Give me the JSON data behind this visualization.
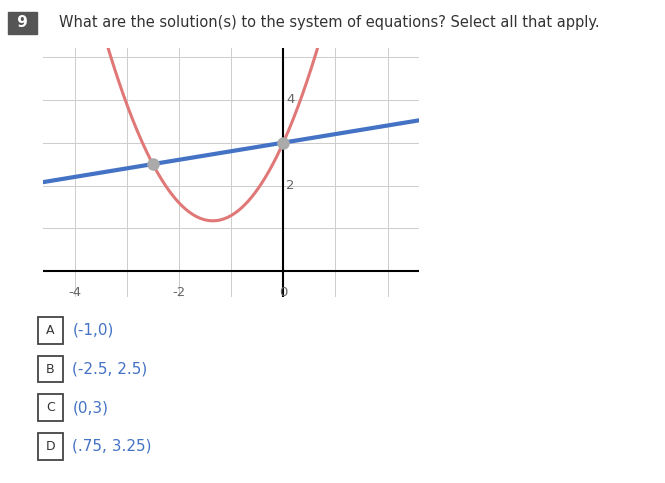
{
  "title": "What are the solution(s) to the system of equations? Select all that apply.",
  "question_number": "9",
  "parabola_color": "#e07878",
  "line_color": "#4472c4",
  "dot_color": "#aaaaaa",
  "intersection_points": [
    [
      -2.5,
      2.5
    ],
    [
      0.0,
      3.0
    ]
  ],
  "xlim": [
    -4.6,
    2.6
  ],
  "ylim": [
    -0.6,
    5.2
  ],
  "x_ticks": [
    -4,
    -2,
    0
  ],
  "y_ticks": [
    2,
    4
  ],
  "parabola_a": 1.0,
  "parabola_b": 2.7,
  "parabola_c": 3.0,
  "line_slope": 0.2,
  "line_intercept": 3.0,
  "choices": [
    {
      "label": "A",
      "text": "(-1,0)"
    },
    {
      "label": "B",
      "text": "(-2.5, 2.5)"
    },
    {
      "label": "C",
      "text": "(0,3)"
    },
    {
      "label": "D",
      "text": "(.75, 3.25)"
    }
  ],
  "choice_text_color": "#4472c4",
  "choice_box_edge_color": "#444444",
  "background_color": "#ffffff",
  "grid_color": "#cccccc",
  "axis_color": "#000000",
  "tick_label_color": "#666666",
  "title_color": "#333333",
  "qnum_bg": "#555555",
  "qnum_color": "#ffffff"
}
